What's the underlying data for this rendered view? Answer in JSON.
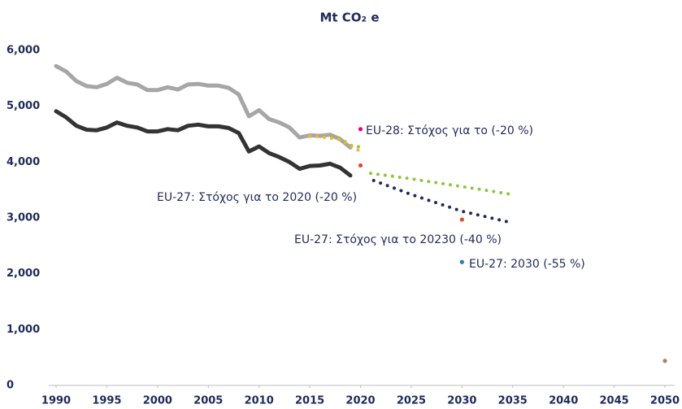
{
  "chart_data": {
    "type": "line",
    "title": "Mt CO₂ e",
    "xlim": [
      1990,
      2050
    ],
    "xticks": [
      1990,
      1995,
      2000,
      2005,
      2010,
      2015,
      2020,
      2025,
      2030,
      2035,
      2040,
      2045,
      2050
    ],
    "ylim": [
      0,
      6000
    ],
    "yticks": [
      0,
      {
        "value": 1000,
        "label": "1,000"
      },
      {
        "value": 2000,
        "label": "2,000"
      },
      {
        "value": 3000,
        "label": "3,000"
      },
      {
        "value": 4000,
        "label": "4,000"
      },
      {
        "value": 5000,
        "label": "5,000"
      },
      {
        "value": 6000,
        "label": "6,000"
      }
    ],
    "grid": false,
    "series": [
      {
        "color": "#a6a6a6",
        "style": "solid",
        "x": [
          1990,
          1991,
          1992,
          1993,
          1994,
          1995,
          1996,
          1997,
          1998,
          1999,
          2000,
          2001,
          2002,
          2003,
          2004,
          2005,
          2006,
          2007,
          2008,
          2009,
          2010,
          2011,
          2012,
          2013,
          2014,
          2015,
          2016,
          2017,
          2018,
          2019
        ],
        "values": [
          5720,
          5620,
          5450,
          5360,
          5340,
          5400,
          5510,
          5420,
          5390,
          5290,
          5290,
          5340,
          5300,
          5390,
          5400,
          5370,
          5370,
          5330,
          5210,
          4820,
          4930,
          4770,
          4710,
          4620,
          4440,
          4480,
          4470,
          4490,
          4410,
          4260
        ]
      },
      {
        "color": "#333333",
        "style": "solid",
        "x": [
          1990,
          1991,
          1992,
          1993,
          1994,
          1995,
          1996,
          1997,
          1998,
          1999,
          2000,
          2001,
          2002,
          2003,
          2004,
          2005,
          2006,
          2007,
          2008,
          2009,
          2010,
          2011,
          2012,
          2013,
          2014,
          2015,
          2016,
          2017,
          2018,
          2019
        ],
        "values": [
          4910,
          4800,
          4650,
          4580,
          4570,
          4620,
          4710,
          4650,
          4620,
          4550,
          4550,
          4590,
          4570,
          4650,
          4670,
          4640,
          4640,
          4610,
          4520,
          4190,
          4280,
          4160,
          4090,
          4000,
          3880,
          3930,
          3940,
          3970,
          3900,
          3760
        ]
      },
      {
        "color": "#8dc63f",
        "style": "dotted",
        "x": [
          2015,
          2016,
          2017,
          2018,
          2019,
          2020
        ],
        "values": [
          4460,
          4460,
          4460,
          4430,
          4300,
          4270
        ]
      },
      {
        "color": "#f5b335",
        "style": "dotted",
        "x": [
          2015,
          2016,
          2017,
          2018,
          2019,
          2020
        ],
        "values": [
          4470,
          4450,
          4430,
          4400,
          4300,
          4190
        ]
      },
      {
        "color": "#8dc63f",
        "style": "dotted",
        "x": [
          2021,
          2025,
          2030,
          2035
        ],
        "values": [
          3800,
          3700,
          3560,
          3420
        ]
      },
      {
        "color": "#1f2a5a",
        "style": "dotted",
        "x": [
          2021.3,
          2025,
          2030,
          2035
        ],
        "values": [
          3670,
          3420,
          3120,
          2910
        ]
      },
      {
        "color": "#e6007e",
        "style": "point",
        "x": [
          2020
        ],
        "values": [
          4590
        ]
      },
      {
        "color": "#e8452c",
        "style": "point",
        "x": [
          2020
        ],
        "values": [
          3940
        ]
      },
      {
        "color": "#e8452c",
        "style": "point",
        "x": [
          2030
        ],
        "values": [
          2970
        ]
      },
      {
        "color": "#2b7bb9",
        "style": "point",
        "x": [
          2030
        ],
        "values": [
          2210
        ]
      },
      {
        "color": "#a38268",
        "style": "point",
        "x": [
          2050
        ],
        "values": [
          440
        ]
      }
    ],
    "annotations": [
      "EU-28: Στόχος για το (-20 %)",
      "EU-27: Στόχος για το 2020 (-20 %)",
      "EU-27: Στόχος για το 20230 (-40 %)",
      "EU-27: 2030 (-55 %)"
    ]
  }
}
